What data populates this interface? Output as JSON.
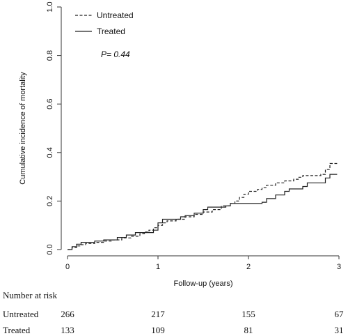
{
  "chart_data": {
    "type": "line",
    "ylabel": "Cumulative incidence of mortality",
    "xlabel": "Follow-up (years)",
    "xlim": [
      0,
      3
    ],
    "ylim": [
      0,
      1
    ],
    "x_ticks": [
      "0",
      "1",
      "2",
      "3"
    ],
    "y_ticks": [
      "0.0",
      "0.2",
      "0.4",
      "0.6",
      "0.8",
      "1.0"
    ],
    "annotation": "P= 0.44",
    "legend_position": "top-left",
    "series": [
      {
        "name": "Untreated",
        "style": "dashed",
        "points": [
          [
            0,
            0
          ],
          [
            0.05,
            0.008
          ],
          [
            0.1,
            0.015
          ],
          [
            0.15,
            0.02
          ],
          [
            0.2,
            0.025
          ],
          [
            0.3,
            0.03
          ],
          [
            0.4,
            0.035
          ],
          [
            0.5,
            0.04
          ],
          [
            0.6,
            0.048
          ],
          [
            0.7,
            0.055
          ],
          [
            0.8,
            0.065
          ],
          [
            0.85,
            0.072
          ],
          [
            0.9,
            0.08
          ],
          [
            0.95,
            0.09
          ],
          [
            1.0,
            0.1
          ],
          [
            1.05,
            0.11
          ],
          [
            1.1,
            0.118
          ],
          [
            1.2,
            0.125
          ],
          [
            1.3,
            0.135
          ],
          [
            1.4,
            0.145
          ],
          [
            1.5,
            0.155
          ],
          [
            1.6,
            0.165
          ],
          [
            1.7,
            0.18
          ],
          [
            1.8,
            0.19
          ],
          [
            1.85,
            0.2
          ],
          [
            1.9,
            0.215
          ],
          [
            1.95,
            0.228
          ],
          [
            2.0,
            0.24
          ],
          [
            2.1,
            0.248
          ],
          [
            2.15,
            0.255
          ],
          [
            2.2,
            0.265
          ],
          [
            2.3,
            0.275
          ],
          [
            2.4,
            0.283
          ],
          [
            2.5,
            0.29
          ],
          [
            2.55,
            0.298
          ],
          [
            2.6,
            0.305
          ],
          [
            2.8,
            0.31
          ],
          [
            2.85,
            0.33
          ],
          [
            2.9,
            0.355
          ],
          [
            2.98,
            0.355
          ]
        ]
      },
      {
        "name": "Treated",
        "style": "solid",
        "points": [
          [
            0,
            0
          ],
          [
            0.05,
            0.012
          ],
          [
            0.1,
            0.022
          ],
          [
            0.15,
            0.03
          ],
          [
            0.3,
            0.035
          ],
          [
            0.4,
            0.04
          ],
          [
            0.55,
            0.05
          ],
          [
            0.65,
            0.06
          ],
          [
            0.75,
            0.07
          ],
          [
            0.95,
            0.08
          ],
          [
            1.0,
            0.11
          ],
          [
            1.05,
            0.125
          ],
          [
            1.25,
            0.135
          ],
          [
            1.3,
            0.14
          ],
          [
            1.4,
            0.15
          ],
          [
            1.5,
            0.165
          ],
          [
            1.55,
            0.175
          ],
          [
            1.75,
            0.18
          ],
          [
            1.8,
            0.19
          ],
          [
            2.15,
            0.195
          ],
          [
            2.2,
            0.21
          ],
          [
            2.3,
            0.225
          ],
          [
            2.4,
            0.24
          ],
          [
            2.45,
            0.25
          ],
          [
            2.6,
            0.26
          ],
          [
            2.65,
            0.275
          ],
          [
            2.85,
            0.295
          ],
          [
            2.9,
            0.31
          ],
          [
            2.98,
            0.31
          ]
        ]
      }
    ]
  },
  "risk_table": {
    "title": "Number at risk",
    "rows": [
      {
        "label": "Untreated",
        "values": [
          "266",
          "217",
          "155",
          "67"
        ]
      },
      {
        "label": "Treated",
        "values": [
          "133",
          "109",
          "81",
          "31"
        ]
      }
    ]
  }
}
